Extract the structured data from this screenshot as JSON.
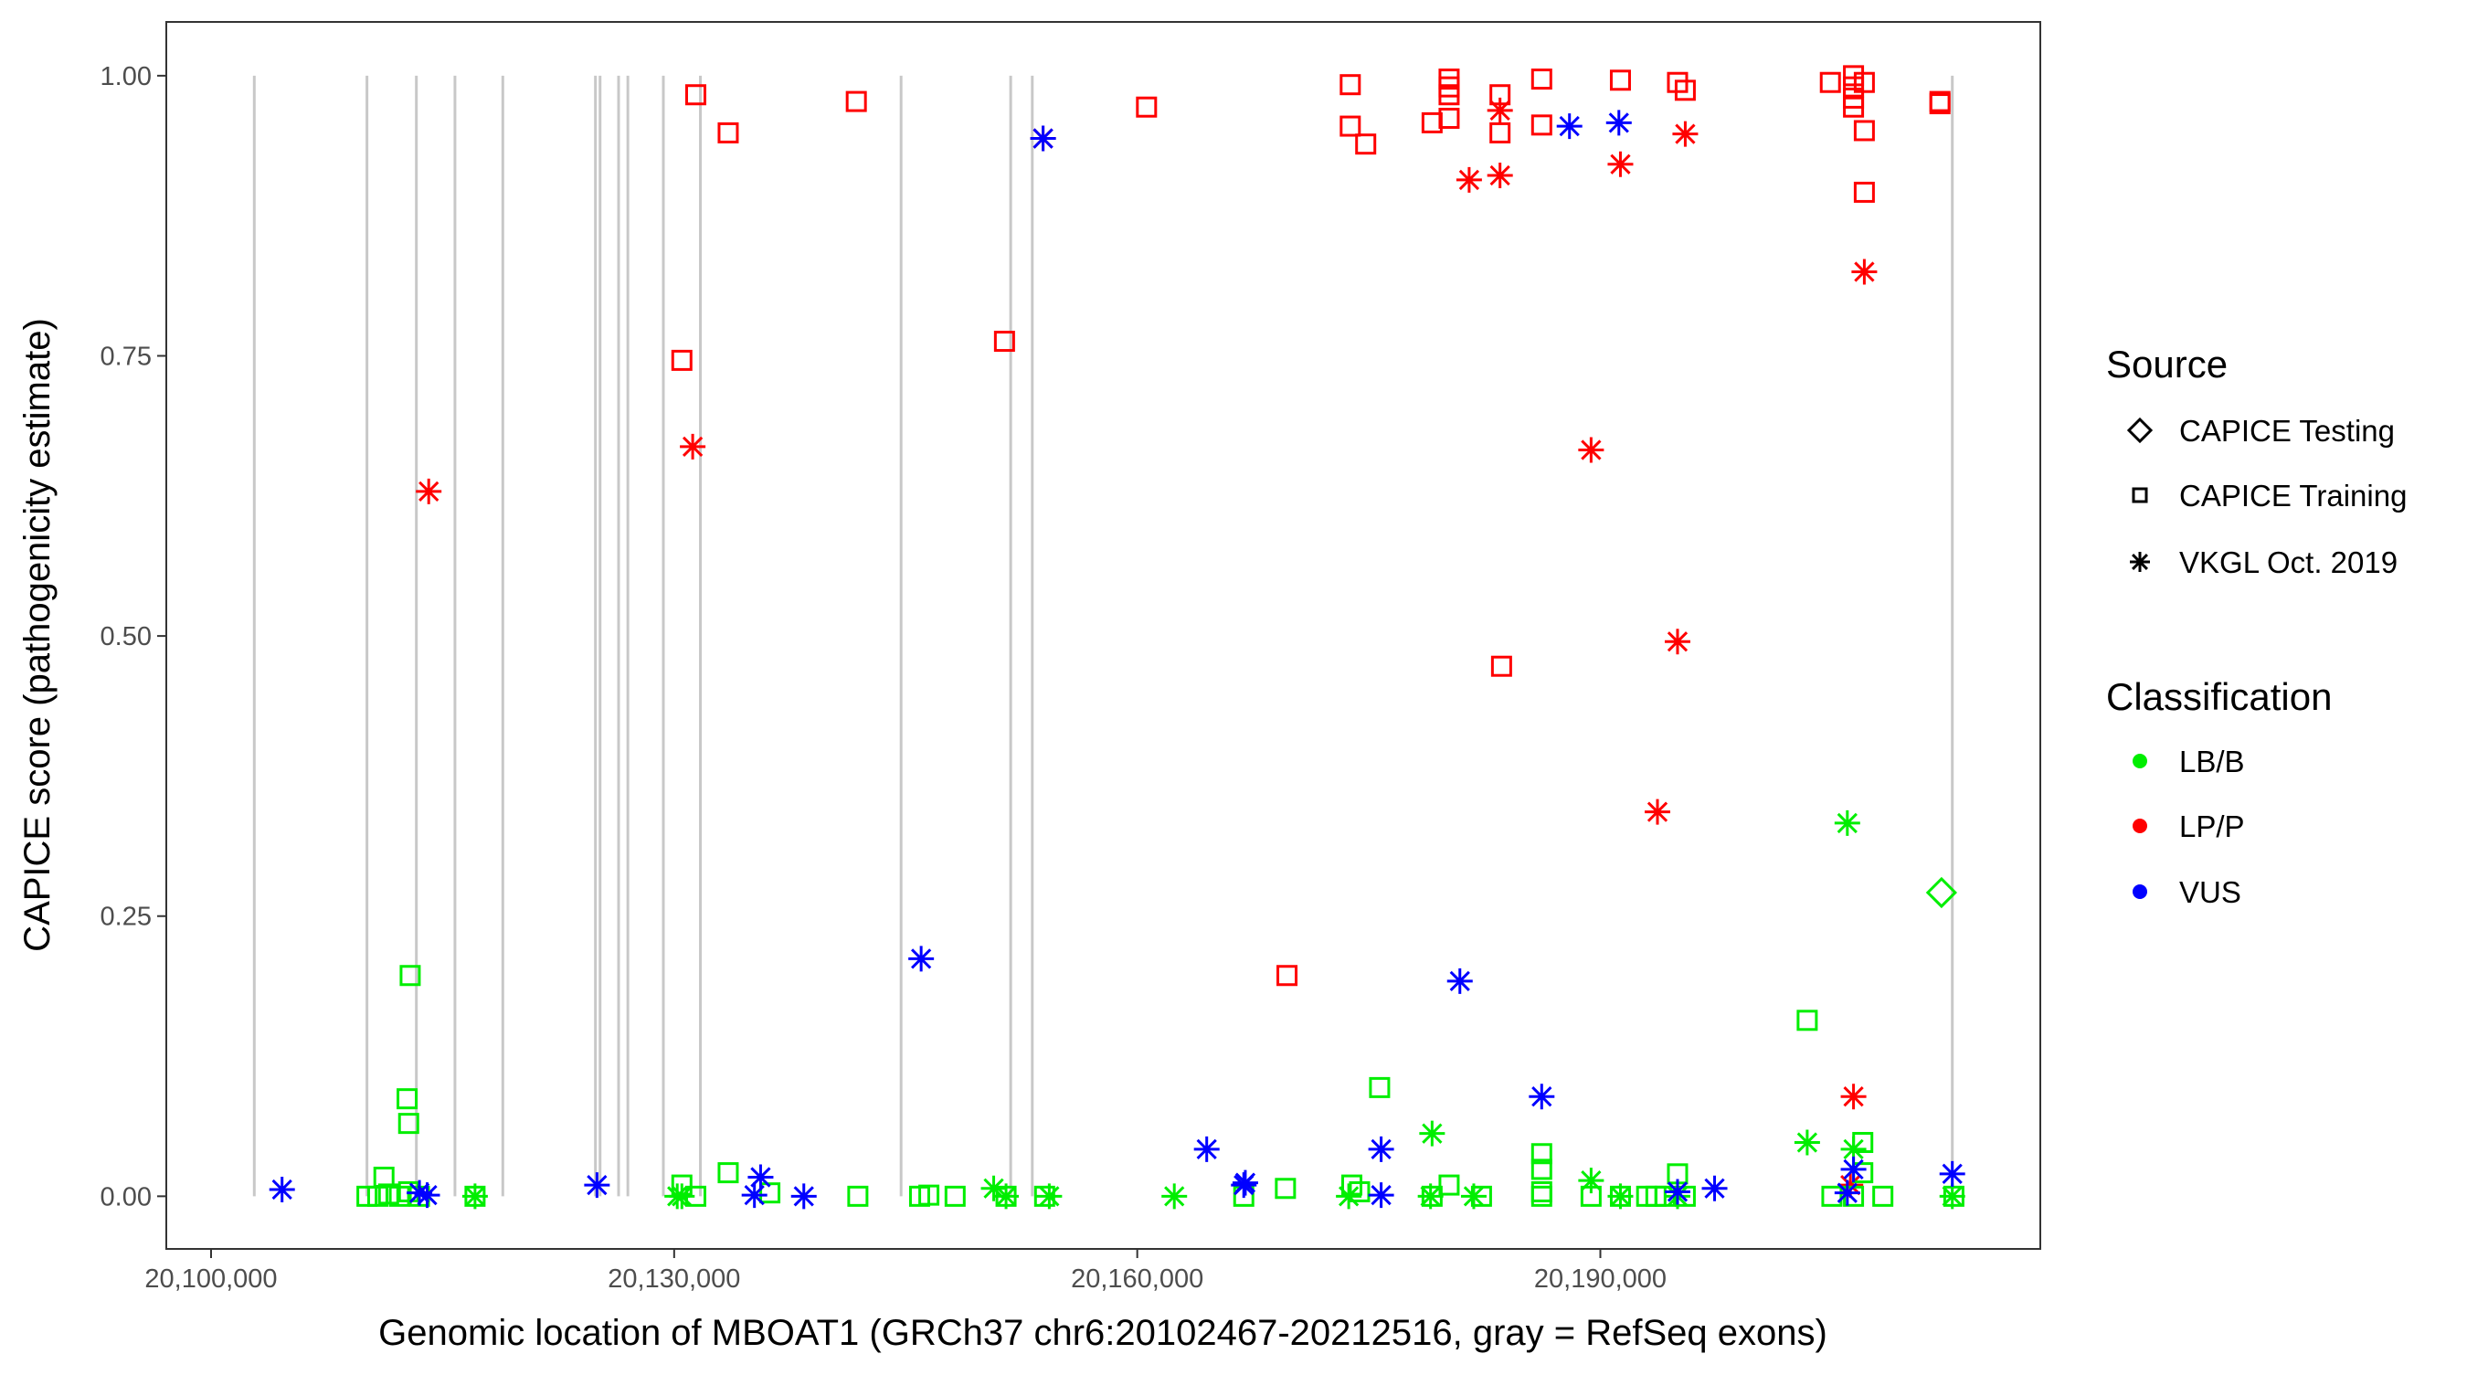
{
  "chart_data": {
    "type": "scatter",
    "xlabel": "Genomic location of MBOAT1 (GRCh37 chr6:20102467-20212516, gray = RefSeq exons)",
    "ylabel": "CAPICE score (pathogenicity estimate)",
    "xlim": [
      20097100,
      20218500
    ],
    "ylim": [
      -0.047,
      1.048
    ],
    "x_ticks": [
      20100000,
      20130000,
      20160000,
      20190000
    ],
    "x_tick_labels": [
      "20,100,000",
      "20,130,000",
      "20,160,000",
      "20,190,000"
    ],
    "y_ticks": [
      0,
      0.25,
      0.5,
      0.75,
      1.0
    ],
    "y_tick_labels": [
      "0.00",
      "0.25",
      "0.50",
      "0.75",
      "1.00"
    ],
    "grid": false,
    "exons": [
      20102800,
      20110100,
      20113300,
      20115800,
      20118900,
      20124900,
      20125200,
      20126400,
      20127000,
      20129300,
      20131700,
      20144700,
      20151800,
      20153200,
      20212800
    ],
    "colors": {
      "LB/B": "#00ee00",
      "LP/P": "#ff0000",
      "VUS": "#0000ff",
      "exon": "#c8c8c8"
    },
    "legend": {
      "placement": "right",
      "source_title": "Source",
      "source_items": [
        {
          "label": "CAPICE Testing",
          "shape": "diamond"
        },
        {
          "label": "CAPICE Training",
          "shape": "square"
        },
        {
          "label": "VKGL Oct. 2019",
          "shape": "asterisk"
        }
      ],
      "class_title": "Classification",
      "class_items": [
        {
          "label": "LB/B"
        },
        {
          "label": "LP/P"
        },
        {
          "label": "VUS"
        }
      ]
    },
    "series": [
      {
        "name": "LP/P CAPICE Training",
        "class": "LP/P",
        "shape": "square",
        "points": [
          [
            20131400,
            0.983
          ],
          [
            20133500,
            0.949
          ],
          [
            20141800,
            0.977
          ],
          [
            20160600,
            0.972
          ],
          [
            20173800,
            0.992
          ],
          [
            20173800,
            0.955
          ],
          [
            20174800,
            0.939
          ],
          [
            20179100,
            0.958
          ],
          [
            20180200,
            0.997
          ],
          [
            20180200,
            0.99
          ],
          [
            20180200,
            0.983
          ],
          [
            20180200,
            0.962
          ],
          [
            20183500,
            0.983
          ],
          [
            20183500,
            0.949
          ],
          [
            20186200,
            0.997
          ],
          [
            20186200,
            0.956
          ],
          [
            20191300,
            0.996
          ],
          [
            20195000,
            0.994
          ],
          [
            20195500,
            0.987
          ],
          [
            20204900,
            0.994
          ],
          [
            20206400,
            1.0
          ],
          [
            20206400,
            0.99
          ],
          [
            20206400,
            0.98
          ],
          [
            20206400,
            0.972
          ],
          [
            20207100,
            0.994
          ],
          [
            20207100,
            0.951
          ],
          [
            20207100,
            0.896
          ],
          [
            20212000,
            0.977
          ],
          [
            20212000,
            0.975
          ],
          [
            20130500,
            0.746
          ],
          [
            20151400,
            0.763
          ],
          [
            20183600,
            0.473
          ],
          [
            20169700,
            0.197
          ]
        ]
      },
      {
        "name": "LP/P VKGL",
        "class": "LP/P",
        "shape": "asterisk",
        "points": [
          [
            20114100,
            0.629
          ],
          [
            20131200,
            0.669
          ],
          [
            20153900,
            0.944
          ],
          [
            20181500,
            0.907
          ],
          [
            20183500,
            0.911
          ],
          [
            20183500,
            0.969
          ],
          [
            20189400,
            0.666
          ],
          [
            20191300,
            0.921
          ],
          [
            20195500,
            0.948
          ],
          [
            20195000,
            0.495
          ],
          [
            20193700,
            0.343
          ],
          [
            20207100,
            0.825
          ],
          [
            20206400,
            0.089
          ],
          [
            20206200,
            0.01
          ]
        ]
      },
      {
        "name": "LB/B CAPICE Training",
        "class": "LB/B",
        "shape": "square",
        "points": [
          [
            20112900,
            0.197
          ],
          [
            20112700,
            0.087
          ],
          [
            20112800,
            0.065
          ],
          [
            20111200,
            0.017
          ],
          [
            20110100,
            0.0
          ],
          [
            20110800,
            0.0
          ],
          [
            20111500,
            0.002
          ],
          [
            20112200,
            0.0
          ],
          [
            20112800,
            0.004
          ],
          [
            20113500,
            0.0
          ],
          [
            20117100,
            0.0
          ],
          [
            20130500,
            0.01
          ],
          [
            20131400,
            0.0
          ],
          [
            20133500,
            0.021
          ],
          [
            20136200,
            0.003
          ],
          [
            20141900,
            0.0
          ],
          [
            20145900,
            0.0
          ],
          [
            20146500,
            0.001
          ],
          [
            20148200,
            0.0
          ],
          [
            20151500,
            0.0
          ],
          [
            20154000,
            0.0
          ],
          [
            20166900,
            0.0
          ],
          [
            20169600,
            0.007
          ],
          [
            20173900,
            0.01
          ],
          [
            20174400,
            0.004
          ],
          [
            20175700,
            0.097
          ],
          [
            20179100,
            0.0
          ],
          [
            20180200,
            0.01
          ],
          [
            20182300,
            0.0
          ],
          [
            20186200,
            0.038
          ],
          [
            20186200,
            0.024
          ],
          [
            20186200,
            0.0
          ],
          [
            20186200,
            0.004
          ],
          [
            20189400,
            0.0
          ],
          [
            20191300,
            0.0
          ],
          [
            20193000,
            0.0
          ],
          [
            20193600,
            0.0
          ],
          [
            20194200,
            0.0
          ],
          [
            20195000,
            0.02
          ],
          [
            20195500,
            0.0
          ],
          [
            20203400,
            0.157
          ],
          [
            20205000,
            0.0
          ],
          [
            20207000,
            0.048
          ],
          [
            20207000,
            0.021
          ],
          [
            20206400,
            0.0
          ],
          [
            20208300,
            0.0
          ],
          [
            20212900,
            0.0
          ]
        ]
      },
      {
        "name": "LB/B VKGL",
        "class": "LB/B",
        "shape": "asterisk",
        "points": [
          [
            20117100,
            0.0
          ],
          [
            20130200,
            0.0
          ],
          [
            20130500,
            0.0
          ],
          [
            20150700,
            0.007
          ],
          [
            20151500,
            0.0
          ],
          [
            20154300,
            0.0
          ],
          [
            20162400,
            0.0
          ],
          [
            20173700,
            0.0
          ],
          [
            20179100,
            0.056
          ],
          [
            20179000,
            0.0
          ],
          [
            20181800,
            0.0
          ],
          [
            20189400,
            0.014
          ],
          [
            20191300,
            0.0
          ],
          [
            20195000,
            0.0
          ],
          [
            20203400,
            0.048
          ],
          [
            20206000,
            0.333
          ],
          [
            20206400,
            0.042
          ],
          [
            20212800,
            0.0
          ]
        ]
      },
      {
        "name": "LB/B CAPICE Testing",
        "class": "LB/B",
        "shape": "diamond",
        "points": [
          [
            20212100,
            0.271
          ]
        ]
      },
      {
        "name": "VUS VKGL",
        "class": "VUS",
        "shape": "asterisk",
        "points": [
          [
            20104600,
            0.006
          ],
          [
            20114000,
            0.001
          ],
          [
            20113500,
            0.003
          ],
          [
            20125000,
            0.01
          ],
          [
            20135600,
            0.017
          ],
          [
            20135200,
            0.001
          ],
          [
            20138400,
            0.0
          ],
          [
            20146000,
            0.212
          ],
          [
            20153900,
            0.944
          ],
          [
            20164500,
            0.042
          ],
          [
            20166900,
            0.01
          ],
          [
            20167000,
            0.012
          ],
          [
            20175800,
            0.042
          ],
          [
            20175800,
            0.001
          ],
          [
            20180900,
            0.192
          ],
          [
            20186200,
            0.089
          ],
          [
            20188000,
            0.955
          ],
          [
            20191200,
            0.958
          ],
          [
            20195000,
            0.004
          ],
          [
            20197400,
            0.007
          ],
          [
            20206400,
            0.024
          ],
          [
            20206000,
            0.003
          ],
          [
            20212800,
            0.02
          ]
        ]
      }
    ]
  }
}
